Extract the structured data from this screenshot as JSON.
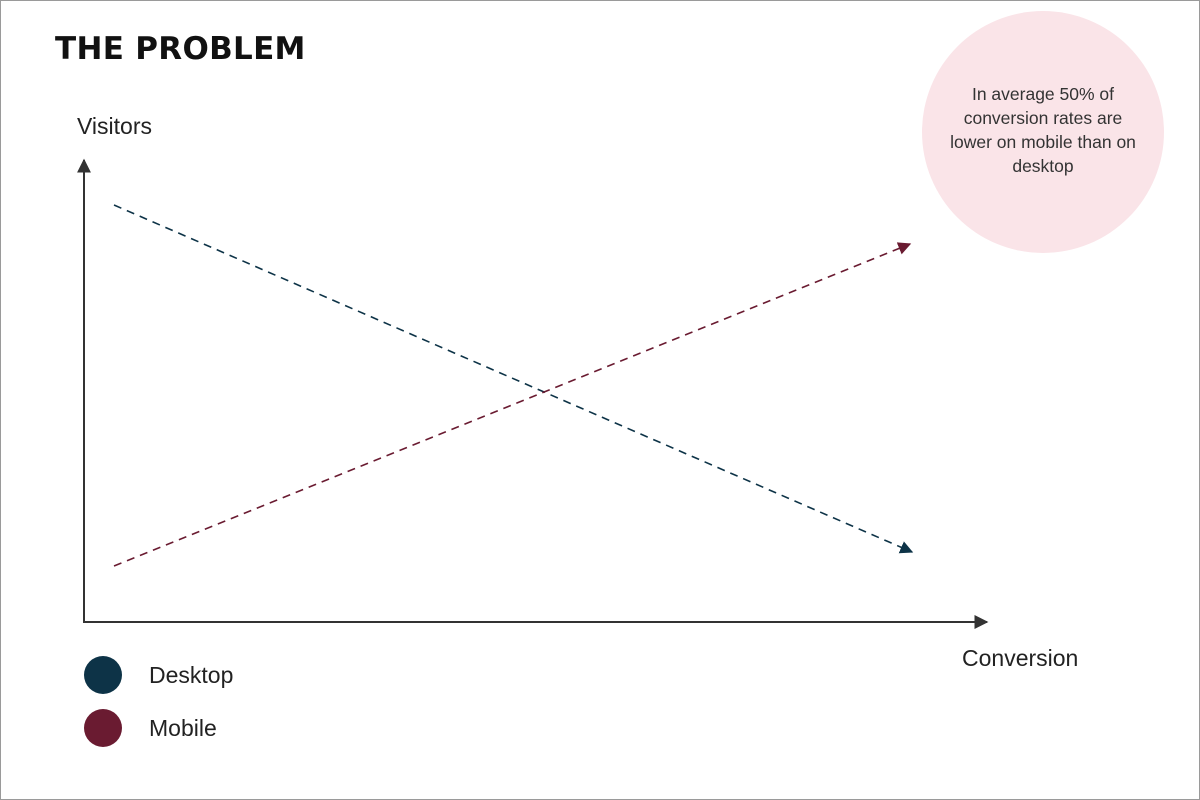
{
  "slide": {
    "title": "THE PROBLEM",
    "y_axis_label": "Visitors",
    "x_axis_label": "Conversion",
    "callout": "In average 50% of conversion rates are lower on mobile than on desktop"
  },
  "legend": [
    {
      "label": "Desktop",
      "color": "#0d3347"
    },
    {
      "label": "Mobile",
      "color": "#6a1b31"
    }
  ],
  "lines": [
    {
      "series": "Desktop",
      "trend": "decreasing",
      "style": "dashed",
      "color": "#0d3347"
    },
    {
      "series": "Mobile",
      "trend": "increasing",
      "style": "dashed",
      "color": "#6a1b31"
    }
  ],
  "colors": {
    "axis": "#333333",
    "callout_background": "#fae4e8"
  }
}
